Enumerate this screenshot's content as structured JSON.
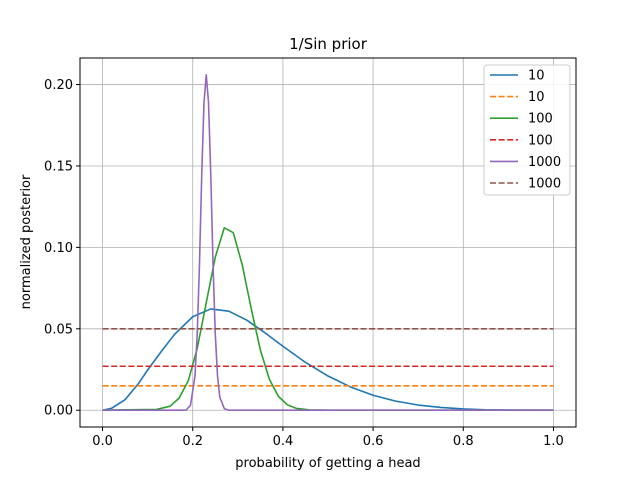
{
  "chart_data": {
    "type": "line",
    "title": "1/Sin prior",
    "xlabel": "probability of getting a head",
    "ylabel": "normalized posterior",
    "xlim": [
      -0.05,
      1.05
    ],
    "ylim": [
      -0.0103,
      0.2163
    ],
    "xticks": [
      0.0,
      0.2,
      0.4,
      0.6,
      0.8,
      1.0
    ],
    "xtick_labels": [
      "0.0",
      "0.2",
      "0.4",
      "0.6",
      "0.8",
      "1.0"
    ],
    "yticks": [
      0.0,
      0.05,
      0.1,
      0.15,
      0.2
    ],
    "ytick_labels": [
      "0.00",
      "0.05",
      "0.10",
      "0.15",
      "0.20"
    ],
    "grid": true,
    "legend_position": "top-right",
    "series": [
      {
        "name": "10",
        "style": "solid",
        "color": "#1f77b4",
        "x": [
          0.0,
          0.02,
          0.05,
          0.08,
          0.1,
          0.13,
          0.16,
          0.2,
          0.24,
          0.28,
          0.32,
          0.36,
          0.4,
          0.45,
          0.5,
          0.55,
          0.6,
          0.65,
          0.7,
          0.75,
          0.8,
          0.85,
          0.9,
          1.0
        ],
        "y": [
          0.0,
          0.0012,
          0.0065,
          0.0165,
          0.0247,
          0.036,
          0.0467,
          0.0574,
          0.0622,
          0.0608,
          0.0553,
          0.0476,
          0.0393,
          0.0294,
          0.021,
          0.0143,
          0.0092,
          0.0056,
          0.0032,
          0.0017,
          0.0008,
          0.0003,
          0.0001,
          0.0
        ]
      },
      {
        "name": "10",
        "style": "dashed",
        "color": "#ff7f0e",
        "x": [
          0.0,
          1.0
        ],
        "y": [
          0.015,
          0.015
        ]
      },
      {
        "name": "100",
        "style": "solid",
        "color": "#2ca02c",
        "x": [
          0.0,
          0.12,
          0.15,
          0.17,
          0.19,
          0.21,
          0.23,
          0.25,
          0.27,
          0.29,
          0.31,
          0.33,
          0.35,
          0.37,
          0.39,
          0.41,
          0.43,
          0.46,
          0.5,
          1.0
        ],
        "y": [
          0.0,
          0.0005,
          0.0025,
          0.0075,
          0.018,
          0.038,
          0.066,
          0.094,
          0.112,
          0.109,
          0.089,
          0.062,
          0.037,
          0.019,
          0.0085,
          0.0033,
          0.0011,
          0.0002,
          0.0,
          0.0
        ]
      },
      {
        "name": "100",
        "style": "dashed",
        "color": "#d62728",
        "x": [
          0.0,
          1.0
        ],
        "y": [
          0.027,
          0.027
        ]
      },
      {
        "name": "1000",
        "style": "solid",
        "color": "#9467bd",
        "x": [
          0.0,
          0.185,
          0.195,
          0.205,
          0.21,
          0.215,
          0.22,
          0.225,
          0.23,
          0.235,
          0.24,
          0.245,
          0.25,
          0.255,
          0.26,
          0.27,
          0.28,
          1.0
        ],
        "y": [
          0.0,
          0.0,
          0.003,
          0.021,
          0.047,
          0.09,
          0.145,
          0.189,
          0.206,
          0.189,
          0.145,
          0.09,
          0.047,
          0.021,
          0.008,
          0.001,
          0.0,
          0.0
        ]
      },
      {
        "name": "1000",
        "style": "dashed",
        "color": "#8c564b",
        "x": [
          0.0,
          1.0
        ],
        "y": [
          0.05,
          0.05
        ]
      }
    ]
  }
}
